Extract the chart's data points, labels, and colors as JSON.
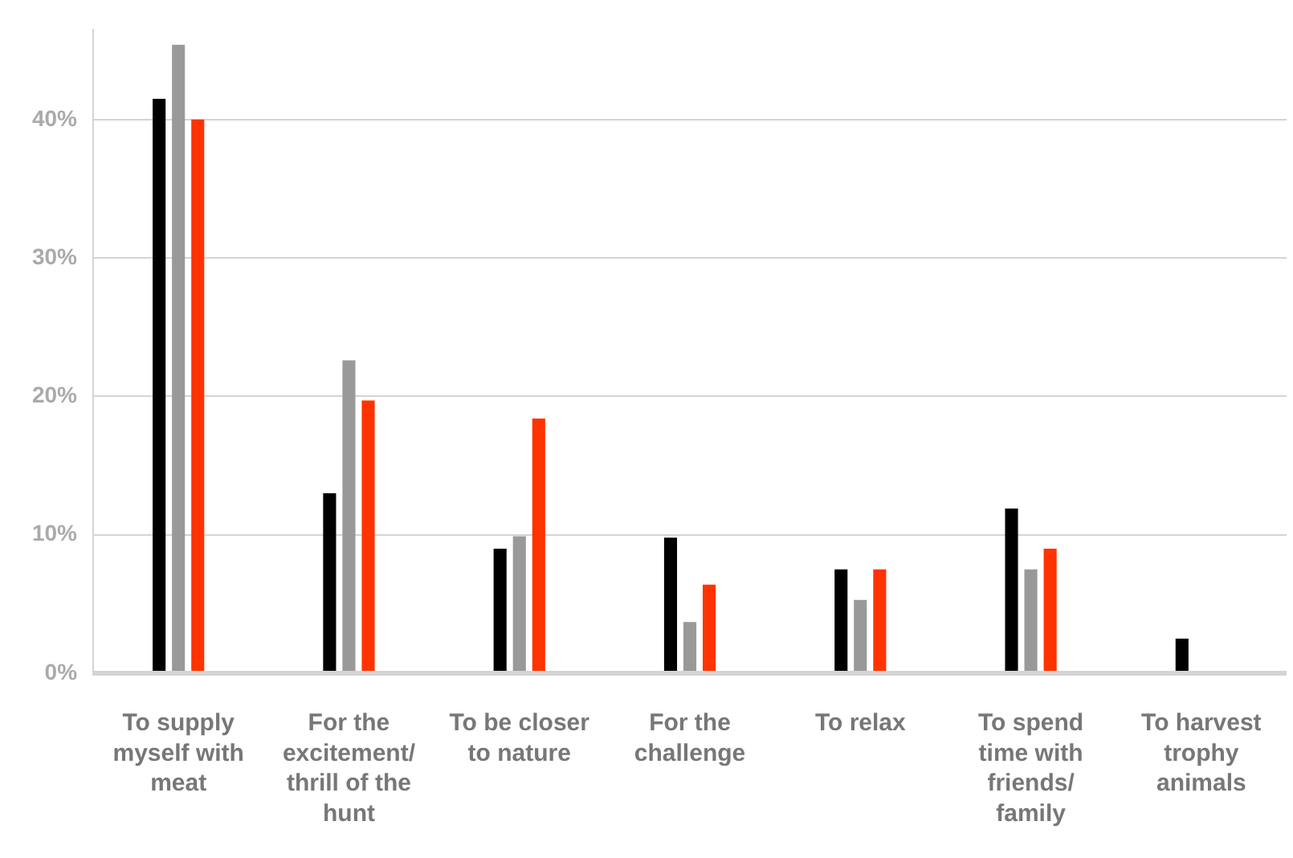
{
  "chart_data": {
    "type": "bar",
    "categories": [
      "To supply myself with meat",
      "For the excitement/ thrill of the hunt",
      "To be closer to nature",
      "For the challenge",
      "To relax",
      "To spend time with friends/ family",
      "To harvest trophy animals"
    ],
    "series": [
      {
        "color": "#000000",
        "values": [
          41.5,
          13.0,
          9.0,
          9.8,
          7.5,
          11.9,
          2.5
        ]
      },
      {
        "color": "#999999",
        "values": [
          45.4,
          22.6,
          9.9,
          3.7,
          5.3,
          7.5,
          0
        ]
      },
      {
        "color": "#ff3300",
        "values": [
          40.0,
          19.7,
          18.4,
          6.4,
          7.5,
          9.0,
          0
        ]
      }
    ],
    "ylim": [
      0,
      46.5
    ],
    "yticks": [
      {
        "value": 0,
        "label": "0%"
      },
      {
        "value": 10,
        "label": "10%"
      },
      {
        "value": 20,
        "label": "20%"
      },
      {
        "value": 30,
        "label": "30%"
      },
      {
        "value": 40,
        "label": "40%"
      }
    ],
    "grid": "y",
    "legend": false
  }
}
